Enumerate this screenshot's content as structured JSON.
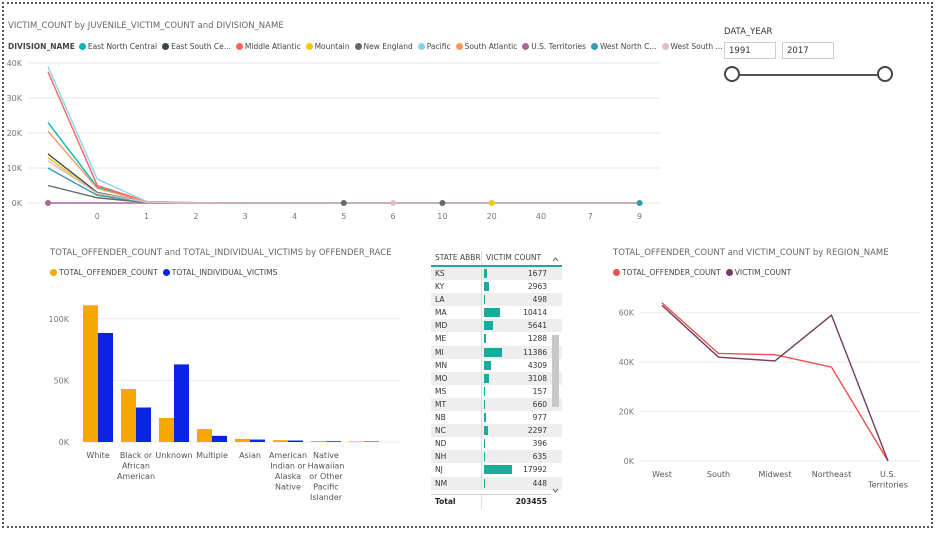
{
  "chart_data": [
    {
      "type": "line",
      "title": "VICTIM_COUNT by JUVENILE_VICTIM_COUNT and DIVISION_NAME",
      "legend_title": "DIVISION_NAME",
      "categories": [
        "",
        "0",
        "1",
        "2",
        "3",
        "4",
        "5",
        "6",
        "10",
        "20",
        "40",
        "7",
        "9"
      ],
      "ylim": [
        0,
        40000
      ],
      "yticks": [
        "0K",
        "10K",
        "20K",
        "30K",
        "40K"
      ],
      "series": [
        {
          "name": "East North Central",
          "color": "#01b8aa",
          "values": [
            23000,
            4500,
            300,
            80,
            30,
            10,
            5,
            3,
            2,
            0,
            0,
            0,
            0
          ]
        },
        {
          "name": "East South Ce...",
          "color": "#374649",
          "values": [
            14000,
            3000,
            250,
            60,
            20,
            8,
            4,
            2,
            1,
            0,
            0,
            0,
            0
          ]
        },
        {
          "name": "Middle Atlantic",
          "color": "#fd625e",
          "values": [
            37500,
            5000,
            400,
            90,
            30,
            12,
            6,
            2,
            1,
            0,
            0,
            0,
            0
          ]
        },
        {
          "name": "Mountain",
          "color": "#f2c80f",
          "values": [
            13000,
            2600,
            200,
            50,
            20,
            7,
            3,
            1,
            1,
            0,
            0,
            0,
            0
          ]
        },
        {
          "name": "New England",
          "color": "#5f6b6d",
          "values": [
            5000,
            1500,
            120,
            30,
            10,
            4,
            2,
            1,
            1,
            0,
            0,
            0,
            0
          ]
        },
        {
          "name": "Pacific",
          "color": "#8ad4eb",
          "values": [
            39000,
            6800,
            450,
            100,
            40,
            15,
            7,
            3,
            2,
            1,
            1,
            0,
            0
          ]
        },
        {
          "name": "South Atlantic",
          "color": "#fe9666",
          "values": [
            20500,
            4200,
            320,
            70,
            25,
            9,
            5,
            2,
            1,
            0,
            0,
            0,
            0
          ]
        },
        {
          "name": "U.S. Territories",
          "color": "#a66999",
          "values": [
            0,
            0,
            0,
            0,
            0,
            0,
            0,
            0,
            0,
            0,
            0,
            0,
            0
          ]
        },
        {
          "name": "West North C...",
          "color": "#3599b8",
          "values": [
            10000,
            2200,
            180,
            45,
            15,
            6,
            3,
            1,
            0,
            0,
            0,
            0,
            0
          ]
        },
        {
          "name": "West South ...",
          "color": "#dfbfbf",
          "values": [
            12000,
            2800,
            230,
            55,
            20,
            7,
            3,
            1,
            0,
            0,
            0,
            0,
            0
          ]
        }
      ]
    },
    {
      "type": "bar",
      "title": "TOTAL_OFFENDER_COUNT and TOTAL_INDIVIDUAL_VICTIMS by OFFENDER_RACE",
      "categories": [
        "White",
        "Black or African American",
        "Unknown",
        "Multiple",
        "Asian",
        "American Indian or Alaska Native",
        "Native Hawaiian or Other Pacific Islander",
        ""
      ],
      "ylim": [
        0,
        125000
      ],
      "yticks": [
        "0K",
        "50K",
        "100K"
      ],
      "series": [
        {
          "name": "TOTAL_OFFENDER_COUNT",
          "color": "#f6a800",
          "values": [
            111000,
            43000,
            19500,
            10500,
            2500,
            1500,
            800,
            500
          ]
        },
        {
          "name": "TOTAL_INDIVIDUAL_VICTIMS",
          "color": "#0a24e6",
          "values": [
            88500,
            28000,
            63000,
            5000,
            2000,
            1200,
            600,
            400
          ]
        }
      ]
    },
    {
      "type": "table",
      "columns": [
        "STATE ABBR",
        "VICTIM COUNT"
      ],
      "rows": [
        {
          "state": "KS",
          "count": 1677
        },
        {
          "state": "KY",
          "count": 2963
        },
        {
          "state": "LA",
          "count": 498
        },
        {
          "state": "MA",
          "count": 10414
        },
        {
          "state": "MD",
          "count": 5641
        },
        {
          "state": "ME",
          "count": 1288
        },
        {
          "state": "MI",
          "count": 11386
        },
        {
          "state": "MN",
          "count": 4309
        },
        {
          "state": "MO",
          "count": 3108
        },
        {
          "state": "MS",
          "count": 157
        },
        {
          "state": "MT",
          "count": 660
        },
        {
          "state": "NB",
          "count": 977
        },
        {
          "state": "NC",
          "count": 2297
        },
        {
          "state": "ND",
          "count": 396
        },
        {
          "state": "NH",
          "count": 635
        },
        {
          "state": "NJ",
          "count": 17992
        },
        {
          "state": "NM",
          "count": 448
        }
      ],
      "max_count": 17992,
      "total_label": "Total",
      "total_value": "203455"
    },
    {
      "type": "line",
      "title": "TOTAL_OFFENDER_COUNT and VICTIM_COUNT by REGION_NAME",
      "categories": [
        "West",
        "South",
        "Midwest",
        "Northeast",
        "U.S. Territories"
      ],
      "ylim": [
        0,
        70000
      ],
      "yticks": [
        "0K",
        "20K",
        "40K",
        "60K"
      ],
      "series": [
        {
          "name": "TOTAL_OFFENDER_COUNT",
          "color": "#e8524f",
          "values": [
            64000,
            43500,
            43000,
            38000,
            0
          ]
        },
        {
          "name": "VICTIM_COUNT",
          "color": "#743c65",
          "values": [
            63000,
            42000,
            40500,
            59000,
            0
          ]
        }
      ]
    }
  ],
  "slicer": {
    "title": "DATA_YEAR",
    "start": "1991",
    "end": "2017"
  }
}
